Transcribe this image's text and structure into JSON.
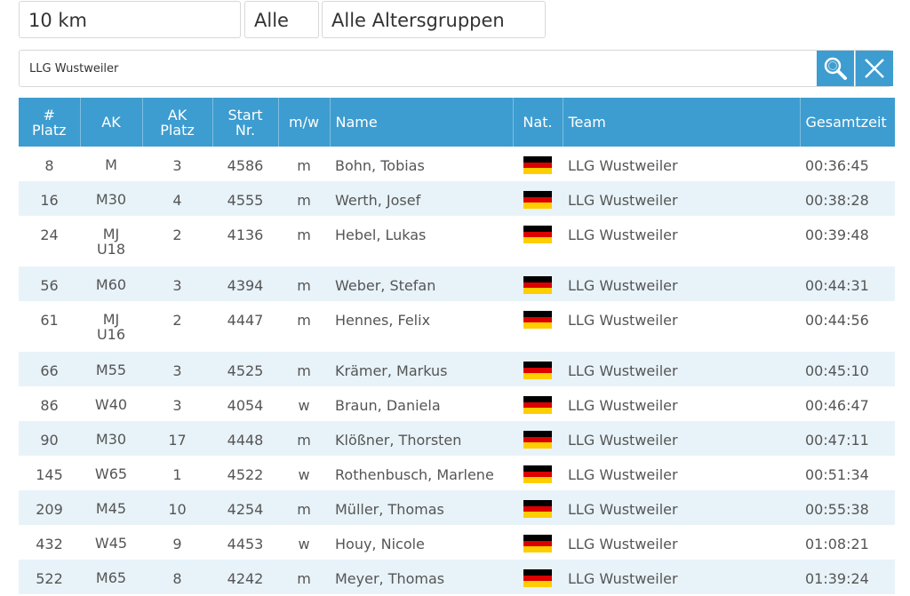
{
  "filters": {
    "distance": "10 km",
    "gender": "Alle",
    "age_group": "Alle Altersgruppen"
  },
  "search": {
    "value": "LLG Wustweiler",
    "search_icon": "search-icon",
    "clear_icon": "close-icon"
  },
  "colors": {
    "accent": "#3d9cd0",
    "row_alt": "#e8f3f9"
  },
  "table": {
    "headers": {
      "platz": [
        "#",
        "Platz"
      ],
      "ak": [
        "AK"
      ],
      "ak_platz": [
        "AK",
        "Platz"
      ],
      "start_nr": [
        "Start",
        "Nr."
      ],
      "mw": [
        "m/w"
      ],
      "name": [
        "Name"
      ],
      "nat": [
        "Nat."
      ],
      "team": [
        "Team"
      ],
      "gesamtzeit": [
        "Gesamtzeit"
      ]
    },
    "rows": [
      {
        "platz": "8",
        "ak": [
          "M"
        ],
        "ak_platz": "3",
        "start_nr": "4586",
        "mw": "m",
        "name": "Bohn, Tobias",
        "nat": "flag-germany",
        "team": "LLG Wustweiler",
        "zeit": "00:36:45"
      },
      {
        "platz": "16",
        "ak": [
          "M30"
        ],
        "ak_platz": "4",
        "start_nr": "4555",
        "mw": "m",
        "name": "Werth, Josef",
        "nat": "flag-germany",
        "team": "LLG Wustweiler",
        "zeit": "00:38:28"
      },
      {
        "platz": "24",
        "ak": [
          "MJ",
          "U18"
        ],
        "ak_platz": "2",
        "start_nr": "4136",
        "mw": "m",
        "name": "Hebel, Lukas",
        "nat": "flag-germany",
        "team": "LLG Wustweiler",
        "zeit": "00:39:48"
      },
      {
        "platz": "56",
        "ak": [
          "M60"
        ],
        "ak_platz": "3",
        "start_nr": "4394",
        "mw": "m",
        "name": "Weber, Stefan",
        "nat": "flag-germany",
        "team": "LLG Wustweiler",
        "zeit": "00:44:31"
      },
      {
        "platz": "61",
        "ak": [
          "MJ",
          "U16"
        ],
        "ak_platz": "2",
        "start_nr": "4447",
        "mw": "m",
        "name": "Hennes, Felix",
        "nat": "flag-germany",
        "team": "LLG Wustweiler",
        "zeit": "00:44:56"
      },
      {
        "platz": "66",
        "ak": [
          "M55"
        ],
        "ak_platz": "3",
        "start_nr": "4525",
        "mw": "m",
        "name": "Krämer, Markus",
        "nat": "flag-germany",
        "team": "LLG Wustweiler",
        "zeit": "00:45:10"
      },
      {
        "platz": "86",
        "ak": [
          "W40"
        ],
        "ak_platz": "3",
        "start_nr": "4054",
        "mw": "w",
        "name": "Braun, Daniela",
        "nat": "flag-germany",
        "team": "LLG Wustweiler",
        "zeit": "00:46:47"
      },
      {
        "platz": "90",
        "ak": [
          "M30"
        ],
        "ak_platz": "17",
        "start_nr": "4448",
        "mw": "m",
        "name": "Klößner, Thorsten",
        "nat": "flag-germany",
        "team": "LLG Wustweiler",
        "zeit": "00:47:11"
      },
      {
        "platz": "145",
        "ak": [
          "W65"
        ],
        "ak_platz": "1",
        "start_nr": "4522",
        "mw": "w",
        "name": "Rothenbusch, Marlene",
        "nat": "flag-germany",
        "team": "LLG Wustweiler",
        "zeit": "00:51:34"
      },
      {
        "platz": "209",
        "ak": [
          "M45"
        ],
        "ak_platz": "10",
        "start_nr": "4254",
        "mw": "m",
        "name": "Müller, Thomas",
        "nat": "flag-germany",
        "team": "LLG Wustweiler",
        "zeit": "00:55:38"
      },
      {
        "platz": "432",
        "ak": [
          "W45"
        ],
        "ak_platz": "9",
        "start_nr": "4453",
        "mw": "w",
        "name": "Houy, Nicole",
        "nat": "flag-germany",
        "team": "LLG Wustweiler",
        "zeit": "01:08:21"
      },
      {
        "platz": "522",
        "ak": [
          "M65"
        ],
        "ak_platz": "8",
        "start_nr": "4242",
        "mw": "m",
        "name": "Meyer, Thomas",
        "nat": "flag-germany",
        "team": "LLG Wustweiler",
        "zeit": "01:39:24"
      }
    ]
  }
}
